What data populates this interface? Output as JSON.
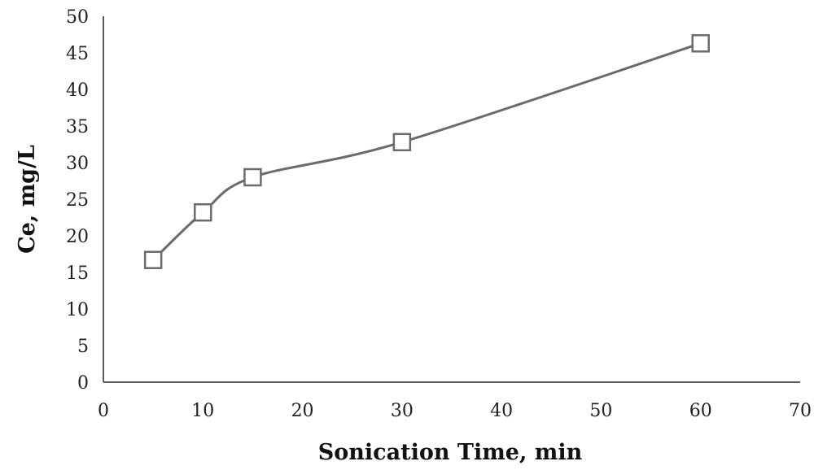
{
  "chart_data": {
    "type": "line",
    "title": "",
    "xlabel": "Sonication Time, min",
    "ylabel": "Ce, mg/L",
    "xlim": [
      0,
      70
    ],
    "ylim": [
      0,
      50
    ],
    "x_ticks": [
      "0",
      "10",
      "20",
      "30",
      "40",
      "50",
      "60",
      "70"
    ],
    "y_ticks": [
      "0",
      "5",
      "10",
      "15",
      "20",
      "25",
      "30",
      "35",
      "40",
      "45",
      "50"
    ],
    "grid": false,
    "legend": "none",
    "smooth": true,
    "marker": "square-open",
    "line_color": "#6b6b6b",
    "series": [
      {
        "x": [
          5,
          10,
          15,
          30,
          60
        ],
        "y": [
          16.7,
          23.2,
          28.0,
          32.8,
          46.3
        ]
      }
    ]
  }
}
